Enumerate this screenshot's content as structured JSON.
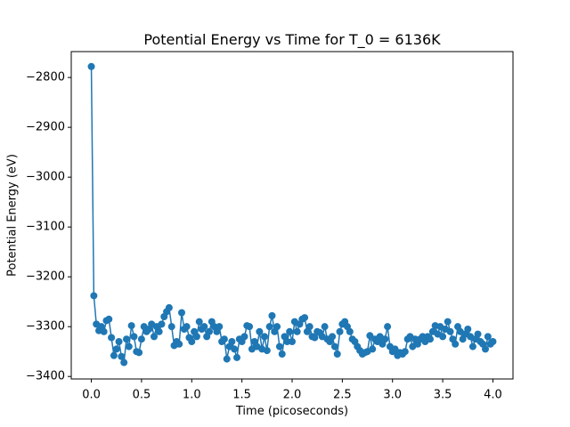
{
  "chart_data": {
    "type": "line",
    "title": "Potential Energy vs Time for T_0 = 6136K",
    "xlabel": "Time (picoseconds)",
    "ylabel": "Potential Energy (eV)",
    "color": "#1f77b4",
    "markers": true,
    "xlim": [
      -0.2,
      4.2
    ],
    "ylim": [
      -3405,
      -2748
    ],
    "xticks": [
      {
        "value": 0,
        "label": "0.0"
      },
      {
        "value": 0.5,
        "label": "0.5"
      },
      {
        "value": 1,
        "label": "1.0"
      },
      {
        "value": 1.5,
        "label": "1.5"
      },
      {
        "value": 2,
        "label": "2.0"
      },
      {
        "value": 2.5,
        "label": "2.5"
      },
      {
        "value": 3,
        "label": "3.0"
      },
      {
        "value": 3.5,
        "label": "3.5"
      },
      {
        "value": 4,
        "label": "4.0"
      }
    ],
    "yticks": [
      {
        "value": -3400,
        "label": "−3400"
      },
      {
        "value": -3300,
        "label": "−3300"
      },
      {
        "value": -3200,
        "label": "−3200"
      },
      {
        "value": -3100,
        "label": "−3100"
      },
      {
        "value": -3000,
        "label": "−3000"
      },
      {
        "value": -2900,
        "label": "−2900"
      },
      {
        "value": -2800,
        "label": "−2800"
      }
    ],
    "x": [
      0,
      0.025,
      0.05,
      0.075,
      0.1,
      0.125,
      0.15,
      0.175,
      0.2,
      0.225,
      0.25,
      0.275,
      0.3,
      0.325,
      0.35,
      0.375,
      0.4,
      0.425,
      0.45,
      0.475,
      0.5,
      0.525,
      0.55,
      0.575,
      0.6,
      0.625,
      0.65,
      0.675,
      0.7,
      0.725,
      0.75,
      0.775,
      0.8,
      0.825,
      0.85,
      0.875,
      0.9,
      0.925,
      0.95,
      0.975,
      1,
      1.025,
      1.05,
      1.075,
      1.1,
      1.125,
      1.15,
      1.175,
      1.2,
      1.225,
      1.25,
      1.275,
      1.3,
      1.325,
      1.35,
      1.375,
      1.4,
      1.425,
      1.45,
      1.475,
      1.5,
      1.525,
      1.55,
      1.575,
      1.6,
      1.625,
      1.65,
      1.675,
      1.7,
      1.725,
      1.75,
      1.775,
      1.8,
      1.825,
      1.85,
      1.875,
      1.9,
      1.925,
      1.95,
      1.975,
      2,
      2.025,
      2.05,
      2.075,
      2.1,
      2.125,
      2.15,
      2.175,
      2.2,
      2.225,
      2.25,
      2.275,
      2.3,
      2.325,
      2.35,
      2.375,
      2.4,
      2.425,
      2.45,
      2.475,
      2.5,
      2.525,
      2.55,
      2.575,
      2.6,
      2.625,
      2.65,
      2.675,
      2.7,
      2.725,
      2.75,
      2.775,
      2.8,
      2.825,
      2.85,
      2.875,
      2.9,
      2.925,
      2.95,
      2.975,
      3,
      3.025,
      3.05,
      3.075,
      3.1,
      3.125,
      3.15,
      3.175,
      3.2,
      3.225,
      3.25,
      3.275,
      3.3,
      3.325,
      3.35,
      3.375,
      3.4,
      3.425,
      3.45,
      3.475,
      3.5,
      3.525,
      3.55,
      3.575,
      3.6,
      3.625,
      3.65,
      3.675,
      3.7,
      3.725,
      3.75,
      3.775,
      3.8,
      3.825,
      3.85,
      3.875,
      3.9,
      3.925,
      3.95,
      3.975,
      4
    ],
    "values": [
      -2778,
      -3238,
      -3295,
      -3308,
      -3300,
      -3310,
      -3288,
      -3285,
      -3322,
      -3358,
      -3345,
      -3330,
      -3360,
      -3372,
      -3325,
      -3340,
      -3298,
      -3320,
      -3350,
      -3352,
      -3325,
      -3300,
      -3310,
      -3305,
      -3295,
      -3320,
      -3300,
      -3310,
      -3295,
      -3280,
      -3270,
      -3262,
      -3300,
      -3338,
      -3330,
      -3335,
      -3272,
      -3305,
      -3300,
      -3322,
      -3330,
      -3310,
      -3320,
      -3290,
      -3305,
      -3300,
      -3320,
      -3310,
      -3290,
      -3300,
      -3310,
      -3300,
      -3330,
      -3325,
      -3365,
      -3340,
      -3330,
      -3345,
      -3362,
      -3325,
      -3330,
      -3320,
      -3298,
      -3300,
      -3345,
      -3330,
      -3340,
      -3310,
      -3345,
      -3320,
      -3348,
      -3300,
      -3278,
      -3310,
      -3300,
      -3340,
      -3355,
      -3320,
      -3330,
      -3310,
      -3330,
      -3290,
      -3310,
      -3295,
      -3285,
      -3282,
      -3310,
      -3300,
      -3320,
      -3322,
      -3310,
      -3312,
      -3320,
      -3300,
      -3325,
      -3330,
      -3320,
      -3340,
      -3355,
      -3310,
      -3295,
      -3290,
      -3300,
      -3310,
      -3325,
      -3330,
      -3340,
      -3348,
      -3355,
      -3352,
      -3350,
      -3318,
      -3345,
      -3325,
      -3330,
      -3320,
      -3335,
      -3325,
      -3300,
      -3340,
      -3350,
      -3345,
      -3358,
      -3352,
      -3355,
      -3350,
      -3325,
      -3320,
      -3340,
      -3325,
      -3335,
      -3325,
      -3320,
      -3330,
      -3320,
      -3325,
      -3310,
      -3298,
      -3315,
      -3300,
      -3320,
      -3305,
      -3290,
      -3310,
      -3325,
      -3335,
      -3300,
      -3310,
      -3325,
      -3315,
      -3305,
      -3320,
      -3340,
      -3325,
      -3315,
      -3330,
      -3335,
      -3345,
      -3320,
      -3335,
      -3330
    ]
  }
}
